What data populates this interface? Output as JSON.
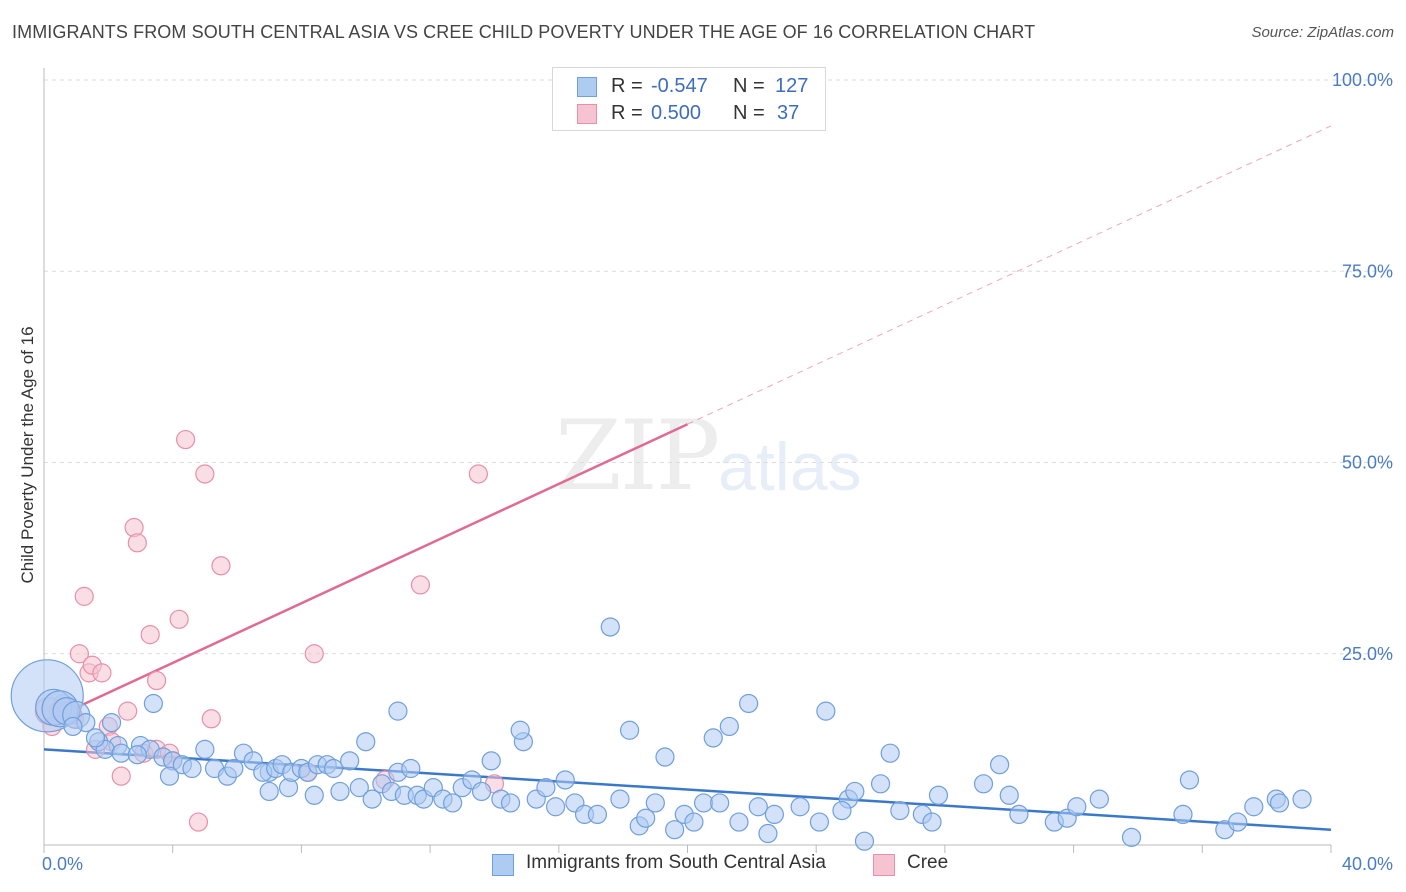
{
  "header": {
    "title": "IMMIGRANTS FROM SOUTH CENTRAL ASIA VS CREE CHILD POVERTY UNDER THE AGE OF 16 CORRELATION CHART",
    "source": "Source: ZipAtlas.com"
  },
  "watermark": {
    "zip": "ZIP",
    "atlas": "atlas"
  },
  "stats": {
    "blue": {
      "r_label": "R =",
      "r_value": "-0.547",
      "n_label": "N =",
      "n_value": "127"
    },
    "pink": {
      "r_label": "R =",
      "r_value": "0.500",
      "n_label": "N =",
      "n_value": "37"
    }
  },
  "legend": {
    "blue_label": "Immigrants from South Central Asia",
    "pink_label": "Cree"
  },
  "colors": {
    "blue_fill": "#aecbf2",
    "blue_stroke": "#6f9fdc",
    "blue_line": "#3a78cc",
    "pink_fill": "#f6c3d2",
    "pink_stroke": "#e88fab",
    "pink_line": "#e06a92",
    "grid": "#dcdcdc",
    "tick_text": "#4a7cc4"
  },
  "chart_data": {
    "type": "scatter",
    "title": "IMMIGRANTS FROM SOUTH CENTRAL ASIA VS CREE CHILD POVERTY UNDER THE AGE OF 16 CORRELATION CHART",
    "xlabel": "",
    "ylabel": "Child Poverty Under the Age of 16",
    "xlim": [
      0,
      40
    ],
    "ylim": [
      0,
      100
    ],
    "x_tick_labels": [
      {
        "value": 0,
        "label": "0.0%"
      },
      {
        "value": 40,
        "label": "40.0%"
      }
    ],
    "y_tick_labels": [
      {
        "value": 25,
        "label": "25.0%"
      },
      {
        "value": 50,
        "label": "50.0%"
      },
      {
        "value": 75,
        "label": "75.0%"
      },
      {
        "value": 100,
        "label": "100.0%"
      }
    ],
    "series": [
      {
        "name": "Immigrants from South Central Asia",
        "color": "blue",
        "points": [
          [
            0.1,
            19.5,
            4
          ],
          [
            0.3,
            18.0,
            2
          ],
          [
            0.5,
            17.8,
            2
          ],
          [
            0.7,
            17.5,
            1.5
          ],
          [
            1.0,
            17.0,
            1.5
          ],
          [
            1.3,
            16.0,
            1
          ],
          [
            0.9,
            15.5,
            1
          ],
          [
            1.7,
            13.5,
            1
          ],
          [
            2.3,
            13.0,
            1
          ],
          [
            3.4,
            18.5,
            1
          ],
          [
            1.9,
            12.5,
            1
          ],
          [
            2.4,
            12.0,
            1
          ],
          [
            3.0,
            13.0,
            1
          ],
          [
            3.3,
            12.5,
            1
          ],
          [
            2.9,
            11.8,
            1
          ],
          [
            3.7,
            11.5,
            1
          ],
          [
            4.0,
            11.0,
            1
          ],
          [
            4.3,
            10.5,
            1
          ],
          [
            5.0,
            12.5,
            1
          ],
          [
            4.6,
            10.0,
            1
          ],
          [
            5.3,
            10.0,
            1
          ],
          [
            3.9,
            9.0,
            1
          ],
          [
            5.7,
            9.0,
            1
          ],
          [
            5.9,
            10.0,
            1
          ],
          [
            6.2,
            12.0,
            1
          ],
          [
            6.5,
            11.0,
            1
          ],
          [
            7.0,
            9.5,
            1
          ],
          [
            6.8,
            9.5,
            1
          ],
          [
            7.2,
            10.0,
            1
          ],
          [
            7.4,
            10.5,
            1
          ],
          [
            7.0,
            7.0,
            1
          ],
          [
            7.6,
            7.5,
            1
          ],
          [
            7.7,
            9.5,
            1
          ],
          [
            8.0,
            10.0,
            1
          ],
          [
            8.2,
            9.5,
            1
          ],
          [
            8.5,
            10.5,
            1
          ],
          [
            8.8,
            10.5,
            1
          ],
          [
            9.0,
            10.0,
            1
          ],
          [
            9.5,
            11.0,
            1
          ],
          [
            8.4,
            6.5,
            1
          ],
          [
            9.2,
            7.0,
            1
          ],
          [
            9.8,
            7.5,
            1
          ],
          [
            10.0,
            13.5,
            1
          ],
          [
            10.2,
            6.0,
            1
          ],
          [
            10.5,
            8.0,
            1
          ],
          [
            10.8,
            7.0,
            1
          ],
          [
            11.0,
            9.5,
            1
          ],
          [
            11.2,
            6.5,
            1
          ],
          [
            11.4,
            10.0,
            1
          ],
          [
            11.6,
            6.5,
            1
          ],
          [
            11.8,
            6.0,
            1
          ],
          [
            12.1,
            7.5,
            1
          ],
          [
            12.4,
            6.0,
            1
          ],
          [
            12.7,
            5.5,
            1
          ],
          [
            13.0,
            7.5,
            1
          ],
          [
            13.3,
            8.5,
            1
          ],
          [
            13.6,
            7.0,
            1
          ],
          [
            13.9,
            11.0,
            1
          ],
          [
            14.2,
            6.0,
            1
          ],
          [
            14.5,
            5.5,
            1
          ],
          [
            14.9,
            13.5,
            1
          ],
          [
            14.8,
            15.0,
            1
          ],
          [
            11.0,
            17.5,
            1
          ],
          [
            15.3,
            6.0,
            1
          ],
          [
            15.6,
            7.5,
            1
          ],
          [
            15.9,
            5.0,
            1
          ],
          [
            16.2,
            8.5,
            1
          ],
          [
            16.5,
            5.5,
            1
          ],
          [
            16.8,
            4.0,
            1
          ],
          [
            17.2,
            4.0,
            1
          ],
          [
            17.6,
            28.5,
            1
          ],
          [
            17.9,
            6.0,
            1
          ],
          [
            18.2,
            15.0,
            1
          ],
          [
            18.5,
            2.5,
            1
          ],
          [
            18.7,
            3.5,
            1
          ],
          [
            19.0,
            5.5,
            1
          ],
          [
            19.3,
            11.5,
            1
          ],
          [
            19.6,
            2.0,
            1
          ],
          [
            19.9,
            4.0,
            1
          ],
          [
            20.2,
            3.0,
            1
          ],
          [
            20.5,
            5.5,
            1
          ],
          [
            20.8,
            14.0,
            1
          ],
          [
            21.0,
            5.5,
            1
          ],
          [
            21.3,
            15.5,
            1
          ],
          [
            21.6,
            3.0,
            1
          ],
          [
            21.9,
            18.5,
            1
          ],
          [
            22.2,
            5.0,
            1
          ],
          [
            22.5,
            1.5,
            1
          ],
          [
            22.7,
            4.0,
            1
          ],
          [
            23.5,
            5.0,
            1
          ],
          [
            24.1,
            3.0,
            1
          ],
          [
            24.3,
            17.5,
            1
          ],
          [
            25.0,
            6.0,
            1
          ],
          [
            25.2,
            7.0,
            1
          ],
          [
            25.5,
            0.5,
            1
          ],
          [
            26.0,
            8.0,
            1
          ],
          [
            26.3,
            12.0,
            1
          ],
          [
            26.6,
            4.5,
            1
          ],
          [
            27.3,
            4.0,
            1
          ],
          [
            27.6,
            3.0,
            1
          ],
          [
            27.8,
            6.5,
            1
          ],
          [
            29.2,
            8.0,
            1
          ],
          [
            29.7,
            10.5,
            1
          ],
          [
            30.0,
            6.5,
            1
          ],
          [
            30.3,
            4.0,
            1
          ],
          [
            31.4,
            3.0,
            1
          ],
          [
            31.8,
            3.5,
            1
          ],
          [
            32.1,
            5.0,
            1
          ],
          [
            32.8,
            6.0,
            1
          ],
          [
            33.8,
            1.0,
            1
          ],
          [
            35.4,
            4.0,
            1
          ],
          [
            35.6,
            8.5,
            1
          ],
          [
            36.7,
            2.0,
            1
          ],
          [
            37.1,
            3.0,
            1
          ],
          [
            37.6,
            5.0,
            1
          ],
          [
            38.3,
            6.0,
            1
          ],
          [
            38.4,
            5.5,
            1
          ],
          [
            39.1,
            6.0,
            1
          ],
          [
            2.1,
            16.0,
            1
          ],
          [
            1.6,
            14.0,
            1
          ],
          [
            24.8,
            4.5,
            1
          ]
        ]
      },
      {
        "name": "Cree",
        "color": "pink",
        "points": [
          [
            0.15,
            17.5,
            1.5
          ],
          [
            0.25,
            15.5,
            1
          ],
          [
            0.45,
            17.5,
            1
          ],
          [
            0.6,
            18.5,
            1
          ],
          [
            0.75,
            17.5,
            1
          ],
          [
            0.9,
            17.0,
            1
          ],
          [
            0.95,
            16.5,
            1
          ],
          [
            1.1,
            25.0,
            1
          ],
          [
            1.25,
            32.5,
            1
          ],
          [
            1.4,
            22.5,
            1
          ],
          [
            1.5,
            23.5,
            1
          ],
          [
            1.6,
            12.5,
            1
          ],
          [
            1.8,
            22.5,
            1
          ],
          [
            2.0,
            15.5,
            1
          ],
          [
            2.1,
            13.5,
            1
          ],
          [
            2.4,
            9.0,
            1
          ],
          [
            2.6,
            17.5,
            1
          ],
          [
            2.8,
            41.5,
            1
          ],
          [
            2.9,
            39.5,
            1
          ],
          [
            3.1,
            12.0,
            1
          ],
          [
            3.3,
            27.5,
            1
          ],
          [
            3.5,
            12.5,
            1
          ],
          [
            3.5,
            21.5,
            1
          ],
          [
            3.9,
            12.0,
            1
          ],
          [
            4.0,
            11.0,
            1
          ],
          [
            4.2,
            29.5,
            1
          ],
          [
            4.4,
            53.0,
            1
          ],
          [
            4.8,
            3.0,
            1
          ],
          [
            5.0,
            48.5,
            1
          ],
          [
            5.2,
            16.5,
            1
          ],
          [
            5.5,
            36.5,
            1
          ],
          [
            8.4,
            25.0,
            1
          ],
          [
            8.2,
            9.5,
            1
          ],
          [
            10.6,
            8.5,
            1
          ],
          [
            11.7,
            34.0,
            1
          ],
          [
            13.5,
            48.5,
            1
          ],
          [
            14.0,
            8.0,
            1
          ]
        ]
      }
    ],
    "trend_lines": [
      {
        "series": "Immigrants from South Central Asia",
        "x": [
          0,
          40
        ],
        "y": [
          12.5,
          2.0
        ],
        "style": "solid"
      },
      {
        "series": "Cree",
        "x": [
          0,
          20
        ],
        "y": [
          16.0,
          55.0
        ],
        "style": "solid"
      },
      {
        "series": "Cree",
        "x": [
          20,
          40
        ],
        "y": [
          55.0,
          94.0
        ],
        "style": "dashed"
      }
    ]
  }
}
